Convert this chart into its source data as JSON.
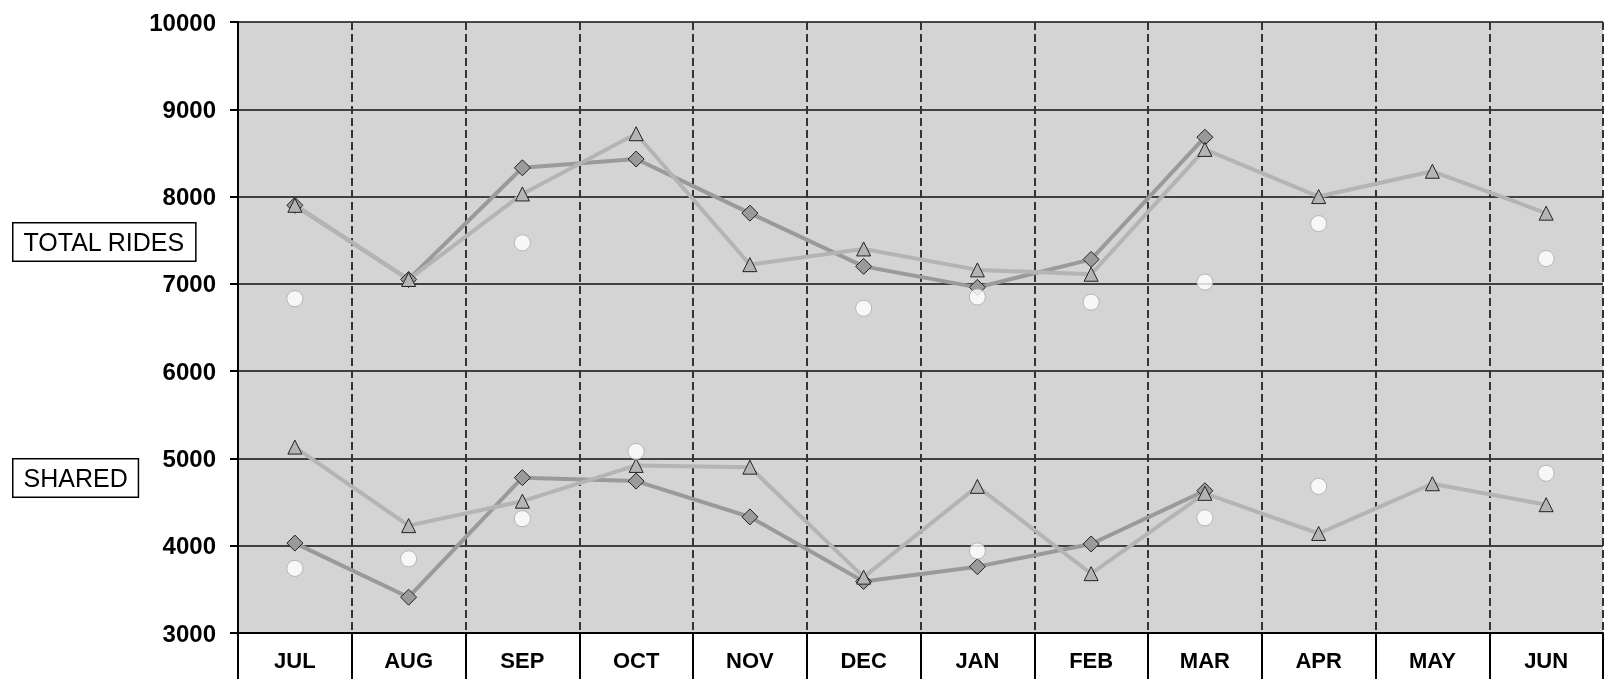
{
  "chart_data": {
    "type": "line",
    "categories": [
      "JUL",
      "AUG",
      "SEP",
      "OCT",
      "NOV",
      "DEC",
      "JAN",
      "FEB",
      "MAR",
      "APR",
      "MAY",
      "JUN"
    ],
    "ylim": [
      3000,
      10000
    ],
    "yticks": [
      3000,
      4000,
      5000,
      6000,
      7000,
      8000,
      9000,
      10000
    ],
    "grid": true,
    "annotations": [
      "TOTAL RIDES",
      "SHARED"
    ],
    "series": [
      {
        "color": "#9a9a9a",
        "marker": "diamond",
        "values": [
          7900,
          7050,
          8330,
          8430,
          7810,
          7200,
          6960,
          7280,
          8680,
          null,
          null,
          null
        ]
      },
      {
        "color": "#b4b4b4",
        "marker": "triangle",
        "values": [
          7900,
          7050,
          8030,
          8720,
          7220,
          7400,
          7160,
          7110,
          8540,
          8000,
          8290,
          7810
        ]
      },
      {
        "type": "scatter",
        "color": "#ffffff",
        "marker": "circle",
        "values": [
          6830,
          null,
          7470,
          null,
          null,
          6720,
          6850,
          6790,
          7020,
          7690,
          null,
          7290
        ]
      },
      {
        "color": "#9a9a9a",
        "marker": "diamond",
        "values": [
          4030,
          3410,
          4780,
          4740,
          4330,
          3590,
          3760,
          4020,
          4630,
          null,
          null,
          null
        ]
      },
      {
        "color": "#b4b4b4",
        "marker": "triangle",
        "values": [
          5130,
          4230,
          4510,
          4920,
          4900,
          3640,
          4680,
          3680,
          4600,
          4140,
          4710,
          4470
        ]
      },
      {
        "type": "scatter",
        "color": "#ffffff",
        "marker": "circle",
        "values": [
          3740,
          3850,
          4310,
          5080,
          null,
          null,
          3940,
          null,
          4320,
          4680,
          null,
          4830
        ]
      }
    ]
  }
}
